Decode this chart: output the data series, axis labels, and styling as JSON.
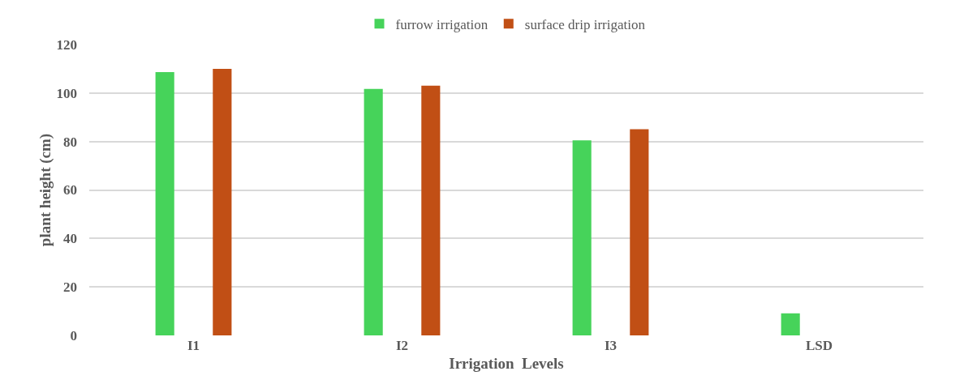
{
  "chart_data": {
    "type": "bar",
    "xlabel": "Irrigation  Levels",
    "ylabel": "plant height (cm)",
    "categories": [
      "I1",
      "I2",
      "I3",
      "LSD"
    ],
    "series": [
      {
        "name": "furrow irrigation",
        "color": "#46d35a",
        "values": [
          108.6,
          101.7,
          80.5,
          9.1
        ]
      },
      {
        "name": "surface drip irrigation",
        "color": "#c14f15",
        "values": [
          110,
          103,
          85.1,
          null
        ]
      }
    ],
    "ylim": [
      0,
      120
    ],
    "yticks": [
      0,
      20,
      40,
      60,
      80,
      100,
      120
    ],
    "grid": "y",
    "legend": "top"
  }
}
